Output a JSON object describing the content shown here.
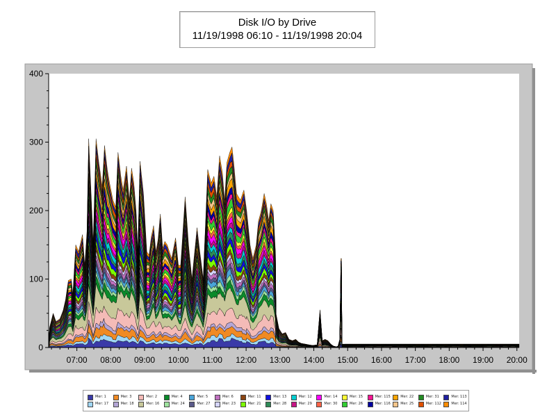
{
  "chart_data": {
    "type": "area",
    "title": "Disk I/O by Drive",
    "subtitle": "11/19/1998 06:10 - 11/19/1998 20:04",
    "ylim": [
      0,
      400
    ],
    "yticks": [
      "0",
      "100",
      "200",
      "300",
      "400"
    ],
    "xticks": [
      "07:00",
      "08:00",
      "09:00",
      "10:00",
      "11:00",
      "12:00",
      "13:00",
      "14:00",
      "15:00",
      "16:00",
      "17:00",
      "18:00",
      "19:00",
      "20:00"
    ],
    "xtick_minutes": [
      420,
      480,
      540,
      600,
      660,
      720,
      780,
      840,
      900,
      960,
      1020,
      1080,
      1140,
      1200
    ],
    "x_start_minutes": 370,
    "x_end_minutes": 1204,
    "grid": false,
    "legend_position": "bottom",
    "total_profile": [
      [
        370,
        5
      ],
      [
        372,
        30
      ],
      [
        378,
        50
      ],
      [
        383,
        38
      ],
      [
        390,
        42
      ],
      [
        396,
        55
      ],
      [
        400,
        70
      ],
      [
        405,
        98
      ],
      [
        410,
        100
      ],
      [
        413,
        78
      ],
      [
        418,
        150
      ],
      [
        423,
        140
      ],
      [
        430,
        165
      ],
      [
        434,
        120
      ],
      [
        438,
        170
      ],
      [
        441,
        305
      ],
      [
        446,
        210
      ],
      [
        449,
        150
      ],
      [
        454,
        305
      ],
      [
        459,
        270
      ],
      [
        465,
        235
      ],
      [
        469,
        295
      ],
      [
        474,
        260
      ],
      [
        478,
        240
      ],
      [
        484,
        215
      ],
      [
        489,
        205
      ],
      [
        493,
        285
      ],
      [
        498,
        250
      ],
      [
        502,
        230
      ],
      [
        508,
        265
      ],
      [
        513,
        215
      ],
      [
        517,
        262
      ],
      [
        521,
        240
      ],
      [
        525,
        200
      ],
      [
        528,
        140
      ],
      [
        532,
        272
      ],
      [
        538,
        225
      ],
      [
        544,
        140
      ],
      [
        548,
        135
      ],
      [
        552,
        162
      ],
      [
        556,
        178
      ],
      [
        560,
        140
      ],
      [
        564,
        158
      ],
      [
        568,
        195
      ],
      [
        572,
        145
      ],
      [
        576,
        155
      ],
      [
        580,
        150
      ],
      [
        588,
        130
      ],
      [
        595,
        160
      ],
      [
        600,
        120
      ],
      [
        604,
        120
      ],
      [
        612,
        220
      ],
      [
        618,
        150
      ],
      [
        624,
        100
      ],
      [
        633,
        175
      ],
      [
        638,
        140
      ],
      [
        644,
        100
      ],
      [
        652,
        260
      ],
      [
        658,
        240
      ],
      [
        663,
        250
      ],
      [
        668,
        220
      ],
      [
        673,
        280
      ],
      [
        678,
        255
      ],
      [
        682,
        215
      ],
      [
        686,
        270
      ],
      [
        691,
        285
      ],
      [
        695,
        293
      ],
      [
        698,
        270
      ],
      [
        703,
        225
      ],
      [
        710,
        215
      ],
      [
        716,
        230
      ],
      [
        721,
        200
      ],
      [
        727,
        150
      ],
      [
        732,
        130
      ],
      [
        738,
        150
      ],
      [
        742,
        185
      ],
      [
        747,
        200
      ],
      [
        752,
        225
      ],
      [
        756,
        210
      ],
      [
        760,
        185
      ],
      [
        764,
        210
      ],
      [
        768,
        200
      ],
      [
        772,
        140
      ],
      [
        773,
        50
      ],
      [
        778,
        28
      ],
      [
        784,
        20
      ],
      [
        790,
        22
      ],
      [
        796,
        12
      ],
      [
        802,
        10
      ],
      [
        808,
        12
      ],
      [
        813,
        8
      ],
      [
        818,
        6
      ],
      [
        825,
        5
      ],
      [
        831,
        4
      ],
      [
        838,
        3
      ],
      [
        846,
        4
      ],
      [
        851,
        55
      ],
      [
        855,
        10
      ],
      [
        860,
        12
      ],
      [
        865,
        10
      ],
      [
        870,
        5
      ],
      [
        875,
        2
      ],
      [
        880,
        1
      ],
      [
        883,
        2
      ],
      [
        886,
        12
      ],
      [
        888,
        130
      ],
      [
        889,
        130
      ],
      [
        890,
        5
      ]
    ],
    "series": [
      {
        "name": "Mer: 1",
        "color": "#3a3aa8",
        "weight": 1.2
      },
      {
        "name": "Mer: 17",
        "color": "#9fd6f5",
        "weight": 0.8
      },
      {
        "name": "Mer: 3",
        "color": "#f08a24",
        "weight": 1.4
      },
      {
        "name": "Mer: 18",
        "color": "#b4a6d6",
        "weight": 0.7
      },
      {
        "name": "Mer: 2",
        "color": "#f4bbb7",
        "weight": 2.4
      },
      {
        "name": "Mer: 16",
        "color": "#c8c89a",
        "weight": 3.2
      },
      {
        "name": "Mer: 4",
        "color": "#0a8a2a",
        "weight": 1.2
      },
      {
        "name": "Mer: 24",
        "color": "#9ee29e",
        "weight": 0.8
      },
      {
        "name": "Mer: 5",
        "color": "#4aa4d8",
        "weight": 0.9
      },
      {
        "name": "Mer: 27",
        "color": "#5a5a8a",
        "weight": 0.7
      },
      {
        "name": "Mer: 6",
        "color": "#c070c0",
        "weight": 0.8
      },
      {
        "name": "Mer: 23",
        "color": "#d4d4ff",
        "weight": 0.6
      },
      {
        "name": "Mer: 11",
        "color": "#8b4513",
        "weight": 0.8
      },
      {
        "name": "Mer: 21",
        "color": "#7cfc00",
        "weight": 1.0
      },
      {
        "name": "Mer: 13",
        "color": "#1010e0",
        "weight": 1.0
      },
      {
        "name": "Mer: 28",
        "color": "#2e8b57",
        "weight": 0.9
      },
      {
        "name": "Mer: 12",
        "color": "#00ced1",
        "weight": 1.0
      },
      {
        "name": "Mer: 29",
        "color": "#c71585",
        "weight": 0.8
      },
      {
        "name": "Mer: 14",
        "color": "#ff00ff",
        "weight": 1.0
      },
      {
        "name": "Mer: 30",
        "color": "#ff6347",
        "weight": 0.7
      },
      {
        "name": "Mer: 15",
        "color": "#ffff33",
        "weight": 0.8
      },
      {
        "name": "Mer: 26",
        "color": "#32cd32",
        "weight": 1.2
      },
      {
        "name": "Mer: 115",
        "color": "#ff1493",
        "weight": 0.8
      },
      {
        "name": "Mer: 116",
        "color": "#0000a0",
        "weight": 1.0
      },
      {
        "name": "Mer: 22",
        "color": "#ffa500",
        "weight": 1.1
      },
      {
        "name": "Mer: 25",
        "color": "#f5c58a",
        "weight": 1.0
      },
      {
        "name": "Mer: 31",
        "color": "#228b22",
        "weight": 1.0
      },
      {
        "name": "Mer: 112",
        "color": "#e05000",
        "weight": 1.0
      },
      {
        "name": "Mer: 113",
        "color": "#2020a0",
        "weight": 1.0
      },
      {
        "name": "Mer: 114",
        "color": "#ff8c00",
        "weight": 0.9
      }
    ]
  }
}
